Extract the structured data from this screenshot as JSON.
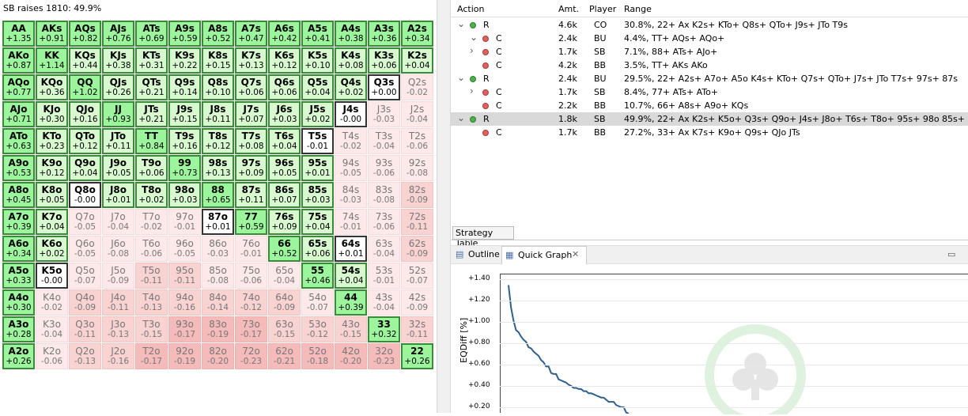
{
  "matrix": {
    "title": "SB raises 1810: 49.9%",
    "rows": [
      [
        [
          "AA",
          "+1.35",
          "g1"
        ],
        [
          "AKs",
          "+0.91",
          "g1"
        ],
        [
          "AQs",
          "+0.82",
          "g1"
        ],
        [
          "AJs",
          "+0.76",
          "g1"
        ],
        [
          "ATs",
          "+0.69",
          "g1"
        ],
        [
          "A9s",
          "+0.59",
          "g1"
        ],
        [
          "A8s",
          "+0.52",
          "g1"
        ],
        [
          "A7s",
          "+0.47",
          "g1"
        ],
        [
          "A6s",
          "+0.42",
          "g1"
        ],
        [
          "A5s",
          "+0.41",
          "g1"
        ],
        [
          "A4s",
          "+0.38",
          "g1"
        ],
        [
          "A3s",
          "+0.36",
          "g1"
        ],
        [
          "A2s",
          "+0.34",
          "g1"
        ]
      ],
      [
        [
          "AKo",
          "+0.87",
          "g1"
        ],
        [
          "KK",
          "+1.14",
          "g1"
        ],
        [
          "KQs",
          "+0.44",
          "g2"
        ],
        [
          "KJs",
          "+0.38",
          "g2"
        ],
        [
          "KTs",
          "+0.31",
          "g2"
        ],
        [
          "K9s",
          "+0.22",
          "g2"
        ],
        [
          "K8s",
          "+0.15",
          "g2"
        ],
        [
          "K7s",
          "+0.13",
          "g2"
        ],
        [
          "K6s",
          "+0.12",
          "g2"
        ],
        [
          "K5s",
          "+0.10",
          "g2"
        ],
        [
          "K4s",
          "+0.08",
          "g2"
        ],
        [
          "K3s",
          "+0.06",
          "g2"
        ],
        [
          "K2s",
          "+0.04",
          "g2"
        ]
      ],
      [
        [
          "AQo",
          "+0.77",
          "g1"
        ],
        [
          "KQo",
          "+0.36",
          "g2"
        ],
        [
          "QQ",
          "+1.02",
          "g1"
        ],
        [
          "QJs",
          "+0.26",
          "g2"
        ],
        [
          "QTs",
          "+0.21",
          "g2"
        ],
        [
          "Q9s",
          "+0.14",
          "g2"
        ],
        [
          "Q8s",
          "+0.10",
          "g2"
        ],
        [
          "Q7s",
          "+0.06",
          "g2"
        ],
        [
          "Q6s",
          "+0.06",
          "g2"
        ],
        [
          "Q5s",
          "+0.04",
          "g2"
        ],
        [
          "Q4s",
          "+0.02",
          "g2"
        ],
        [
          "Q3s",
          "+0.00",
          "g0"
        ],
        [
          "Q2s",
          "-0.02",
          "p1"
        ]
      ],
      [
        [
          "AJo",
          "+0.71",
          "g1"
        ],
        [
          "KJo",
          "+0.30",
          "g2"
        ],
        [
          "QJo",
          "+0.16",
          "g2"
        ],
        [
          "JJ",
          "+0.93",
          "g1"
        ],
        [
          "JTs",
          "+0.21",
          "g2"
        ],
        [
          "J9s",
          "+0.15",
          "g2"
        ],
        [
          "J8s",
          "+0.11",
          "g2"
        ],
        [
          "J7s",
          "+0.07",
          "g2"
        ],
        [
          "J6s",
          "+0.03",
          "g2"
        ],
        [
          "J5s",
          "+0.02",
          "g2"
        ],
        [
          "J4s",
          "-0.00",
          "g0"
        ],
        [
          "J3s",
          "-0.03",
          "p1"
        ],
        [
          "J2s",
          "-0.04",
          "p1"
        ]
      ],
      [
        [
          "ATo",
          "+0.63",
          "g1"
        ],
        [
          "KTo",
          "+0.23",
          "g2"
        ],
        [
          "QTo",
          "+0.12",
          "g2"
        ],
        [
          "JTo",
          "+0.11",
          "g2"
        ],
        [
          "TT",
          "+0.84",
          "g1"
        ],
        [
          "T9s",
          "+0.16",
          "g2"
        ],
        [
          "T8s",
          "+0.12",
          "g2"
        ],
        [
          "T7s",
          "+0.08",
          "g2"
        ],
        [
          "T6s",
          "+0.04",
          "g2"
        ],
        [
          "T5s",
          "-0.01",
          "g0"
        ],
        [
          "T4s",
          "-0.02",
          "p1"
        ],
        [
          "T3s",
          "-0.04",
          "p1"
        ],
        [
          "T2s",
          "-0.06",
          "p1"
        ]
      ],
      [
        [
          "A9o",
          "+0.53",
          "g1"
        ],
        [
          "K9o",
          "+0.12",
          "g2"
        ],
        [
          "Q9o",
          "+0.04",
          "g2"
        ],
        [
          "J9o",
          "+0.05",
          "g2"
        ],
        [
          "T9o",
          "+0.06",
          "g2"
        ],
        [
          "99",
          "+0.73",
          "g1"
        ],
        [
          "98s",
          "+0.13",
          "g2"
        ],
        [
          "97s",
          "+0.09",
          "g2"
        ],
        [
          "96s",
          "+0.05",
          "g2"
        ],
        [
          "95s",
          "+0.01",
          "g2"
        ],
        [
          "94s",
          "-0.05",
          "p1"
        ],
        [
          "93s",
          "-0.06",
          "p1"
        ],
        [
          "92s",
          "-0.08",
          "p1"
        ]
      ],
      [
        [
          "A8o",
          "+0.45",
          "g1"
        ],
        [
          "K8o",
          "+0.05",
          "g2"
        ],
        [
          "Q8o",
          "-0.00",
          "g0"
        ],
        [
          "J8o",
          "+0.01",
          "g2"
        ],
        [
          "T8o",
          "+0.02",
          "g2"
        ],
        [
          "98o",
          "+0.03",
          "g2"
        ],
        [
          "88",
          "+0.65",
          "g1"
        ],
        [
          "87s",
          "+0.11",
          "g2"
        ],
        [
          "86s",
          "+0.07",
          "g2"
        ],
        [
          "85s",
          "+0.03",
          "g2"
        ],
        [
          "84s",
          "-0.03",
          "p1"
        ],
        [
          "83s",
          "-0.08",
          "p1"
        ],
        [
          "82s",
          "-0.09",
          "p2"
        ]
      ],
      [
        [
          "A7o",
          "+0.39",
          "g1"
        ],
        [
          "K7o",
          "+0.04",
          "g2"
        ],
        [
          "Q7o",
          "-0.05",
          "p1"
        ],
        [
          "J7o",
          "-0.04",
          "p1"
        ],
        [
          "T7o",
          "-0.02",
          "p1"
        ],
        [
          "97o",
          "-0.01",
          "p1"
        ],
        [
          "87o",
          "+0.01",
          "g0"
        ],
        [
          "77",
          "+0.59",
          "g1"
        ],
        [
          "76s",
          "+0.09",
          "g2"
        ],
        [
          "75s",
          "+0.04",
          "g2"
        ],
        [
          "74s",
          "-0.01",
          "p1"
        ],
        [
          "73s",
          "-0.06",
          "p1"
        ],
        [
          "72s",
          "-0.11",
          "p2"
        ]
      ],
      [
        [
          "A6o",
          "+0.34",
          "g1"
        ],
        [
          "K6o",
          "+0.02",
          "g2"
        ],
        [
          "Q6o",
          "-0.05",
          "p1"
        ],
        [
          "J6o",
          "-0.08",
          "p1"
        ],
        [
          "T6o",
          "-0.06",
          "p1"
        ],
        [
          "96o",
          "-0.05",
          "p1"
        ],
        [
          "86o",
          "-0.03",
          "p1"
        ],
        [
          "76o",
          "-0.01",
          "p1"
        ],
        [
          "66",
          "+0.52",
          "g1"
        ],
        [
          "65s",
          "+0.06",
          "g2"
        ],
        [
          "64s",
          "+0.01",
          "g0"
        ],
        [
          "63s",
          "-0.04",
          "p1"
        ],
        [
          "62s",
          "-0.09",
          "p2"
        ]
      ],
      [
        [
          "A5o",
          "+0.33",
          "g1"
        ],
        [
          "K5o",
          "-0.00",
          "g0"
        ],
        [
          "Q5o",
          "-0.07",
          "p1"
        ],
        [
          "J5o",
          "-0.09",
          "p1"
        ],
        [
          "T5o",
          "-0.11",
          "p2"
        ],
        [
          "95o",
          "-0.11",
          "p2"
        ],
        [
          "85o",
          "-0.08",
          "p1"
        ],
        [
          "75o",
          "-0.06",
          "p1"
        ],
        [
          "65o",
          "-0.04",
          "p1"
        ],
        [
          "55",
          "+0.46",
          "g1"
        ],
        [
          "54s",
          "+0.04",
          "g2"
        ],
        [
          "53s",
          "-0.01",
          "p1"
        ],
        [
          "52s",
          "-0.07",
          "p1"
        ]
      ],
      [
        [
          "A4o",
          "+0.30",
          "g1"
        ],
        [
          "K4o",
          "-0.02",
          "p1"
        ],
        [
          "Q4o",
          "-0.09",
          "p2"
        ],
        [
          "J4o",
          "-0.11",
          "p2"
        ],
        [
          "T4o",
          "-0.13",
          "p2"
        ],
        [
          "94o",
          "-0.16",
          "p2"
        ],
        [
          "84o",
          "-0.14",
          "p2"
        ],
        [
          "74o",
          "-0.12",
          "p2"
        ],
        [
          "64o",
          "-0.09",
          "p2"
        ],
        [
          "54o",
          "-0.07",
          "p1"
        ],
        [
          "44",
          "+0.39",
          "g1"
        ],
        [
          "43s",
          "-0.04",
          "p1"
        ],
        [
          "42s",
          "-0.09",
          "p1"
        ]
      ],
      [
        [
          "A3o",
          "+0.28",
          "g1"
        ],
        [
          "K3o",
          "-0.04",
          "p1"
        ],
        [
          "Q3o",
          "-0.11",
          "p2"
        ],
        [
          "J3o",
          "-0.13",
          "p2"
        ],
        [
          "T3o",
          "-0.15",
          "p2"
        ],
        [
          "93o",
          "-0.17",
          "p3"
        ],
        [
          "83o",
          "-0.19",
          "p3"
        ],
        [
          "73o",
          "-0.17",
          "p3"
        ],
        [
          "63o",
          "-0.15",
          "p2"
        ],
        [
          "53o",
          "-0.12",
          "p2"
        ],
        [
          "43o",
          "-0.15",
          "p2"
        ],
        [
          "33",
          "+0.32",
          "g1"
        ],
        [
          "32s",
          "-0.11",
          "p2"
        ]
      ],
      [
        [
          "A2o",
          "+0.26",
          "g1"
        ],
        [
          "K2o",
          "-0.06",
          "p1"
        ],
        [
          "Q2o",
          "-0.13",
          "p2"
        ],
        [
          "J2o",
          "-0.16",
          "p2"
        ],
        [
          "T2o",
          "-0.17",
          "p3"
        ],
        [
          "92o",
          "-0.19",
          "p3"
        ],
        [
          "82o",
          "-0.20",
          "p3"
        ],
        [
          "72o",
          "-0.23",
          "p3"
        ],
        [
          "62o",
          "-0.21",
          "p3"
        ],
        [
          "52o",
          "-0.18",
          "p3"
        ],
        [
          "42o",
          "-0.20",
          "p3"
        ],
        [
          "32o",
          "-0.23",
          "p3"
        ],
        [
          "22",
          "+0.26",
          "g1"
        ]
      ]
    ]
  },
  "table": {
    "headers": {
      "action": "Action",
      "amt": "Amt.",
      "player": "Player",
      "range": "Range"
    },
    "rows": [
      {
        "toggle": "⌄",
        "dot": "green",
        "indent": 0,
        "action": "R",
        "amt": "4.6k",
        "player": "CO",
        "range": "30.8%, 22+ Ax K2s+ KTo+ Q8s+ QTo+ J9s+ JTo T9s"
      },
      {
        "toggle": "⌄",
        "dot": "red",
        "indent": 1,
        "action": "C",
        "amt": "2.4k",
        "player": "BU",
        "range": "4.4%, TT+ AQs+ AQo+"
      },
      {
        "toggle": "›",
        "dot": "red",
        "indent": 1,
        "action": "C",
        "amt": "1.7k",
        "player": "SB",
        "range": "7.1%, 88+ ATs+ AJo+"
      },
      {
        "toggle": "",
        "dot": "red",
        "indent": 1,
        "action": "C",
        "amt": "4.2k",
        "player": "BB",
        "range": "3.5%, TT+ AKs AKo"
      },
      {
        "toggle": "⌄",
        "dot": "green",
        "indent": 0,
        "action": "R",
        "amt": "2.4k",
        "player": "BU",
        "range": "29.5%, 22+ A2s+ A7o+ A5o K4s+ KTo+ Q7s+ QTo+ J7s+ JTo T7s+ 97s+ 87s"
      },
      {
        "toggle": "›",
        "dot": "red",
        "indent": 1,
        "action": "C",
        "amt": "1.7k",
        "player": "SB",
        "range": "8.4%, 77+ ATs+ ATo+"
      },
      {
        "toggle": "",
        "dot": "red",
        "indent": 1,
        "action": "C",
        "amt": "2.2k",
        "player": "BB",
        "range": "10.7%, 66+ A8s+ A9o+ KQs"
      },
      {
        "toggle": "⌄",
        "dot": "green",
        "indent": 0,
        "action": "R",
        "amt": "1.8k",
        "player": "SB",
        "range": "49.9%, 22+ Ax K2s+ K5o+ Q3s+ Q9o+ J4s+ J8o+ T6s+ T8o+ 95s+ 98o 85s+ 87o 75s+",
        "selected": true
      },
      {
        "toggle": "",
        "dot": "red",
        "indent": 1,
        "action": "C",
        "amt": "1.7k",
        "player": "BB",
        "range": "27.2%, 33+ Ax K7s+ K9o+ Q9s+ QJo JTs"
      }
    ],
    "tab_label": "Strategy Table"
  },
  "views": {
    "outline": "Outline",
    "quick_graph": "Quick Graph",
    "close": "✕",
    "minimize": "▭"
  },
  "graph": {
    "ylabel": "EQDiff [%]",
    "yticks": [
      "+1.40",
      "+1.20",
      "+1.00",
      "+0.80",
      "+0.60",
      "+0.40",
      "+0.20"
    ],
    "line_color": "#2f5f8a"
  },
  "chart_data": {
    "type": "line",
    "title": "",
    "xlabel": "",
    "ylabel": "EQDiff [%]",
    "ylim": [
      0.15,
      1.45
    ],
    "y": [
      1.35,
      1.14,
      1.02,
      0.93,
      0.91,
      0.87,
      0.84,
      0.82,
      0.77,
      0.76,
      0.73,
      0.71,
      0.69,
      0.65,
      0.63,
      0.59,
      0.59,
      0.53,
      0.52,
      0.52,
      0.47,
      0.46,
      0.45,
      0.44,
      0.42,
      0.41,
      0.39,
      0.39,
      0.38,
      0.38,
      0.36,
      0.36,
      0.34,
      0.34,
      0.33,
      0.32,
      0.31,
      0.3,
      0.3,
      0.28,
      0.26,
      0.26,
      0.26,
      0.23,
      0.22,
      0.21,
      0.21,
      0.16,
      0.15
    ],
    "grid": true,
    "legend": "none"
  }
}
